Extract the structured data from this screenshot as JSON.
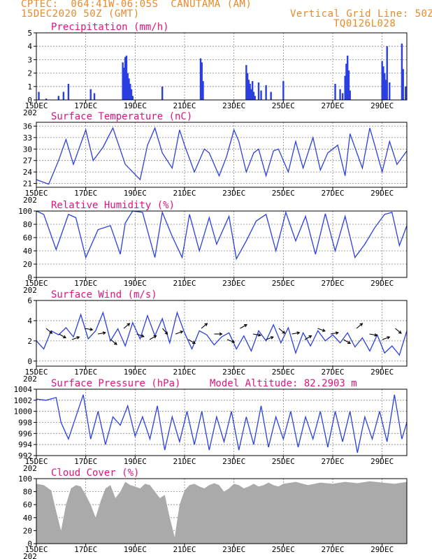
{
  "header": {
    "line1": "CPTEC:  064:41W-06:05S  CANUTAMA (AM)",
    "line2": "15DEC2020 50Z (GMT)",
    "right1": "Vertical Grid Line: 50Z",
    "right2": "TQ0126L028"
  },
  "colors": {
    "header": "#e88a2a",
    "title": "#e0137f",
    "line": "#2a3fe0",
    "bar": "#2a3fe0",
    "cloud": "#aaaaaa",
    "grid": "#888888"
  },
  "x_axis": {
    "start_label": "15DEC",
    "tick_labels": [
      "15DEC",
      "17DEC",
      "19DEC",
      "21DEC",
      "23DEC",
      "25DEC",
      "27DEC",
      "29DEC"
    ],
    "tick_days": [
      0,
      2,
      4,
      6,
      8,
      10,
      12,
      14
    ],
    "cutoff_label": "202",
    "day_range": [
      0,
      15
    ]
  },
  "panels": [
    {
      "id": "precip",
      "title": "Precipitation (mm/h)",
      "ylim": [
        0,
        5
      ],
      "yticks": [
        0,
        1,
        2,
        3,
        4,
        5
      ]
    },
    {
      "id": "temp",
      "title": "Surface Temperature (nC)",
      "ylim": [
        20,
        37
      ],
      "yticks": [
        21,
        24,
        27,
        30,
        33,
        36
      ]
    },
    {
      "id": "rh",
      "title": "Relative Humidity (%)",
      "ylim": [
        0,
        100
      ],
      "yticks": [
        0,
        20,
        40,
        60,
        80,
        100
      ]
    },
    {
      "id": "wind",
      "title": "Surface Wind (m/s)",
      "ylim": [
        -0.5,
        6
      ],
      "yticks": [
        0,
        2,
        4,
        6
      ]
    },
    {
      "id": "pres",
      "title": "Surface Pressure (hPa)",
      "extra": "Model Altitude: 82.2903 m",
      "ylim": [
        992,
        1004
      ],
      "yticks": [
        992,
        994,
        996,
        998,
        1000,
        1002,
        1004
      ]
    },
    {
      "id": "cloud",
      "title": "Cloud Cover (%)",
      "ylim": [
        0,
        100
      ],
      "yticks": [
        0,
        20,
        40,
        60,
        80,
        100
      ]
    }
  ],
  "chart_data": [
    {
      "type": "bar",
      "panel": "precip",
      "title": "Precipitation (mm/h)",
      "x": [
        0.1,
        0.4,
        0.9,
        1.1,
        1.3,
        2.2,
        2.35,
        3.5,
        3.55,
        3.6,
        3.65,
        3.7,
        3.75,
        3.8,
        3.85,
        3.9,
        5.1,
        6.65,
        6.7,
        6.75,
        8.5,
        8.55,
        8.6,
        8.65,
        8.7,
        8.75,
        8.8,
        8.85,
        9.0,
        9.1,
        9.3,
        9.5,
        10.0,
        12.1,
        12.3,
        12.4,
        12.5,
        12.55,
        12.6,
        12.65,
        12.7,
        14.0,
        14.05,
        14.1,
        14.15,
        14.2,
        14.3,
        14.8,
        14.85,
        14.95
      ],
      "values": [
        0.6,
        0.1,
        0.3,
        0.6,
        1.2,
        0.8,
        0.5,
        2.8,
        2.4,
        3.2,
        3.3,
        2.0,
        1.6,
        1.2,
        0.8,
        0.3,
        1.0,
        3.1,
        2.8,
        1.4,
        2.6,
        2.0,
        1.5,
        1.2,
        0.8,
        1.4,
        0.6,
        0.3,
        1.3,
        0.7,
        1.1,
        0.6,
        1.4,
        1.2,
        0.8,
        0.5,
        1.8,
        2.7,
        3.3,
        2.2,
        0.7,
        2.9,
        2.5,
        2.0,
        1.5,
        4.0,
        1.3,
        4.2,
        2.3,
        1.0
      ]
    },
    {
      "type": "line",
      "panel": "temp",
      "title": "Surface Temperature (nC)",
      "x": [
        0,
        0.5,
        0.9,
        1.2,
        1.5,
        2,
        2.3,
        2.7,
        3.1,
        3.6,
        3.9,
        4.2,
        4.5,
        4.8,
        5.1,
        5.5,
        5.8,
        6,
        6.4,
        6.8,
        7,
        7.4,
        7.7,
        8.0,
        8.2,
        8.5,
        8.8,
        9,
        9.3,
        9.6,
        9.8,
        10.2,
        10.5,
        10.8,
        11.2,
        11.5,
        11.8,
        12.2,
        12.5,
        12.7,
        13.2,
        13.5,
        13.7,
        14,
        14.3,
        14.6,
        15
      ],
      "values": [
        22,
        20.8,
        27,
        32.5,
        26,
        35,
        27,
        30.5,
        35.5,
        26,
        24,
        22,
        31,
        35.5,
        29,
        25,
        35,
        31,
        24,
        30,
        29,
        23,
        28,
        35,
        32,
        24,
        29,
        30,
        23,
        29.5,
        30,
        24,
        32,
        25,
        33,
        24.5,
        29,
        31,
        23,
        34,
        25,
        35.5,
        31,
        24,
        32,
        26,
        29.5
      ]
    },
    {
      "type": "line",
      "panel": "rh",
      "title": "Relative Humidity (%)",
      "x": [
        0,
        0.3,
        0.8,
        1.3,
        1.6,
        2,
        2.5,
        3,
        3.4,
        3.6,
        3.9,
        4.3,
        4.8,
        5.1,
        5.5,
        5.9,
        6.2,
        6.6,
        7,
        7.3,
        7.8,
        8.1,
        8.5,
        8.9,
        9.3,
        9.7,
        10.1,
        10.5,
        10.9,
        11.3,
        11.7,
        12.1,
        12.5,
        12.9,
        13.3,
        13.7,
        14.1,
        14.4,
        14.7,
        15
      ],
      "values": [
        100,
        95,
        42,
        95,
        90,
        30,
        72,
        78,
        35,
        82,
        100,
        98,
        30,
        98,
        62,
        30,
        95,
        40,
        90,
        50,
        92,
        28,
        55,
        85,
        95,
        40,
        98,
        55,
        92,
        35,
        96,
        40,
        92,
        30,
        50,
        75,
        95,
        98,
        48,
        78
      ]
    },
    {
      "type": "line",
      "panel": "wind",
      "title": "Surface Wind (m/s)",
      "x": [
        0,
        0.3,
        0.6,
        0.9,
        1.2,
        1.5,
        1.8,
        2.1,
        2.4,
        2.7,
        3,
        3.3,
        3.6,
        3.9,
        4.2,
        4.5,
        4.8,
        5.1,
        5.4,
        5.7,
        6,
        6.3,
        6.6,
        6.9,
        7.2,
        7.5,
        7.8,
        8.1,
        8.4,
        8.7,
        9,
        9.3,
        9.6,
        9.9,
        10.2,
        10.5,
        10.8,
        11.1,
        11.4,
        11.7,
        12,
        12.3,
        12.6,
        12.9,
        13.2,
        13.5,
        13.8,
        14.1,
        14.4,
        14.7,
        15
      ],
      "values": [
        2,
        1.2,
        3,
        2.6,
        3.3,
        2.4,
        4.6,
        2.2,
        3,
        4.8,
        2,
        3.2,
        1.5,
        3.8,
        2.2,
        4.5,
        2.5,
        4.2,
        1.8,
        4.8,
        2.8,
        1.2,
        3,
        2.6,
        1.6,
        2.4,
        2.8,
        1.2,
        2.5,
        1,
        3,
        2,
        3.6,
        1.8,
        3.3,
        0.8,
        2.8,
        1.5,
        3,
        2,
        2.6,
        1.8,
        2.8,
        1.4,
        2.3,
        1,
        2.6,
        0.8,
        1.5,
        0.6,
        3
      ]
    },
    {
      "type": "line",
      "panel": "pres",
      "title": "Surface Pressure (hPa)",
      "x": [
        0,
        0.4,
        0.8,
        1,
        1.3,
        1.6,
        1.9,
        2.2,
        2.5,
        2.8,
        3.1,
        3.4,
        3.7,
        4,
        4.3,
        4.6,
        4.9,
        5.2,
        5.5,
        5.8,
        6.1,
        6.4,
        6.7,
        7,
        7.3,
        7.6,
        7.9,
        8.2,
        8.5,
        8.8,
        9.1,
        9.4,
        9.7,
        10,
        10.3,
        10.6,
        10.9,
        11.2,
        11.5,
        11.8,
        12.1,
        12.4,
        12.7,
        13,
        13.3,
        13.6,
        13.9,
        14.2,
        14.5,
        14.8,
        15
      ],
      "values": [
        1002.2,
        1002,
        1002.5,
        998,
        995,
        999,
        1003,
        995,
        1000,
        994,
        999,
        997.5,
        1001,
        995.5,
        999,
        995,
        1001,
        993,
        999,
        994.5,
        1000,
        994,
        1000,
        993,
        999,
        994.5,
        1000,
        993,
        999,
        994,
        1001,
        993.5,
        999,
        995,
        1000,
        993.5,
        999,
        995,
        1000,
        993.5,
        1000,
        994.5,
        1000,
        992.5,
        999,
        995,
        1000,
        994.5,
        1003,
        995,
        998
      ]
    },
    {
      "type": "area",
      "panel": "cloud",
      "title": "Cloud Cover (%)",
      "x": [
        0,
        0.3,
        0.6,
        0.8,
        1,
        1.2,
        1.4,
        1.6,
        1.8,
        2,
        2.2,
        2.4,
        2.6,
        2.8,
        3,
        3.2,
        3.4,
        3.6,
        3.8,
        4,
        4.2,
        4.4,
        4.6,
        4.8,
        5,
        5.2,
        5.4,
        5.6,
        5.8,
        6,
        6.2,
        6.4,
        6.6,
        6.8,
        7,
        7.2,
        7.4,
        7.6,
        7.8,
        8,
        8.2,
        8.4,
        8.6,
        8.8,
        9,
        9.2,
        9.4,
        9.6,
        9.8,
        10,
        10.5,
        11,
        11.5,
        12,
        12.5,
        13,
        13.5,
        14,
        14.5,
        15
      ],
      "values": [
        92,
        90,
        82,
        50,
        20,
        60,
        85,
        90,
        88,
        75,
        60,
        40,
        65,
        85,
        90,
        70,
        80,
        95,
        90,
        88,
        85,
        92,
        90,
        80,
        70,
        75,
        40,
        10,
        60,
        82,
        90,
        92,
        88,
        85,
        90,
        93,
        90,
        80,
        85,
        92,
        90,
        85,
        88,
        92,
        88,
        90,
        94,
        90,
        88,
        92,
        95,
        90,
        94,
        92,
        95,
        93,
        96,
        94,
        92,
        95
      ]
    }
  ]
}
